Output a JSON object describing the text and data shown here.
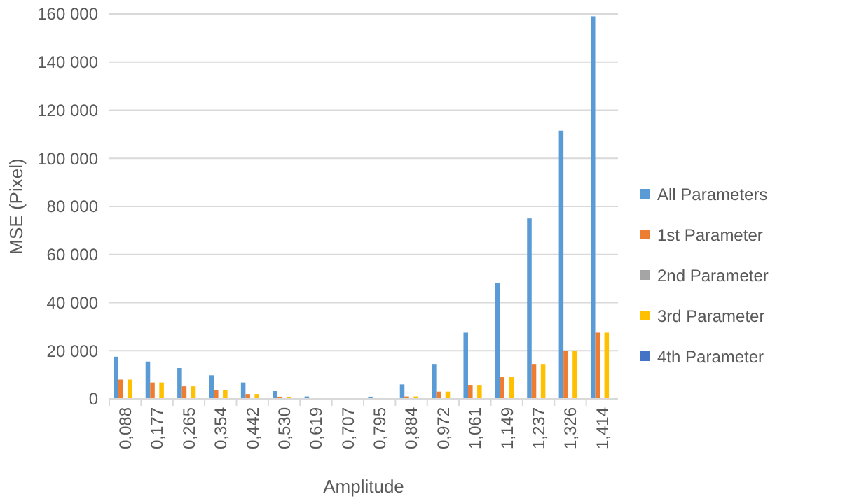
{
  "chart_data": {
    "type": "bar",
    "xlabel": "Amplitude",
    "ylabel": "MSE (Pixel)",
    "categories": [
      "0,088",
      "0,177",
      "0,265",
      "0,354",
      "0,442",
      "0,530",
      "0,619",
      "0,707",
      "0,795",
      "0,884",
      "0,972",
      "1,061",
      "1,149",
      "1,237",
      "1,326",
      "1,414"
    ],
    "series": [
      {
        "name": "All Parameters",
        "color": "#5b9bd5",
        "values": [
          17500,
          15500,
          12800,
          9800,
          6800,
          3200,
          1000,
          0,
          900,
          6000,
          14500,
          27500,
          48000,
          75000,
          111500,
          159000
        ]
      },
      {
        "name": "1st Parameter",
        "color": "#ed7d31",
        "values": [
          8000,
          6800,
          5200,
          3500,
          2000,
          900,
          null,
          0,
          null,
          1000,
          3000,
          5800,
          9000,
          14500,
          20000,
          27500
        ]
      },
      {
        "name": "2nd Parameter",
        "color": "#a5a5a5",
        "values": [
          0,
          0,
          0,
          0,
          0,
          0,
          0,
          0,
          0,
          0,
          0,
          0,
          0,
          0,
          0,
          0
        ]
      },
      {
        "name": "3rd Parameter",
        "color": "#ffc000",
        "values": [
          8000,
          6800,
          5200,
          3500,
          2000,
          900,
          null,
          0,
          null,
          1000,
          3000,
          5800,
          9000,
          14500,
          20000,
          27500
        ]
      },
      {
        "name": "4th Parameter",
        "color": "#4472c4",
        "values": [
          0,
          0,
          0,
          0,
          0,
          0,
          0,
          0,
          0,
          0,
          0,
          0,
          0,
          0,
          0,
          0
        ]
      }
    ],
    "ylim": [
      0,
      160000
    ],
    "yticks": [
      {
        "value": 0,
        "label": "0"
      },
      {
        "value": 20000,
        "label": "20 000"
      },
      {
        "value": 40000,
        "label": "40 000"
      },
      {
        "value": 60000,
        "label": "60 000"
      },
      {
        "value": 80000,
        "label": "80 000"
      },
      {
        "value": 100000,
        "label": "100 000"
      },
      {
        "value": 120000,
        "label": "120 000"
      },
      {
        "value": 140000,
        "label": "140 000"
      },
      {
        "value": 160000,
        "label": "160 000"
      }
    ],
    "grid": "y",
    "legend": "right"
  }
}
